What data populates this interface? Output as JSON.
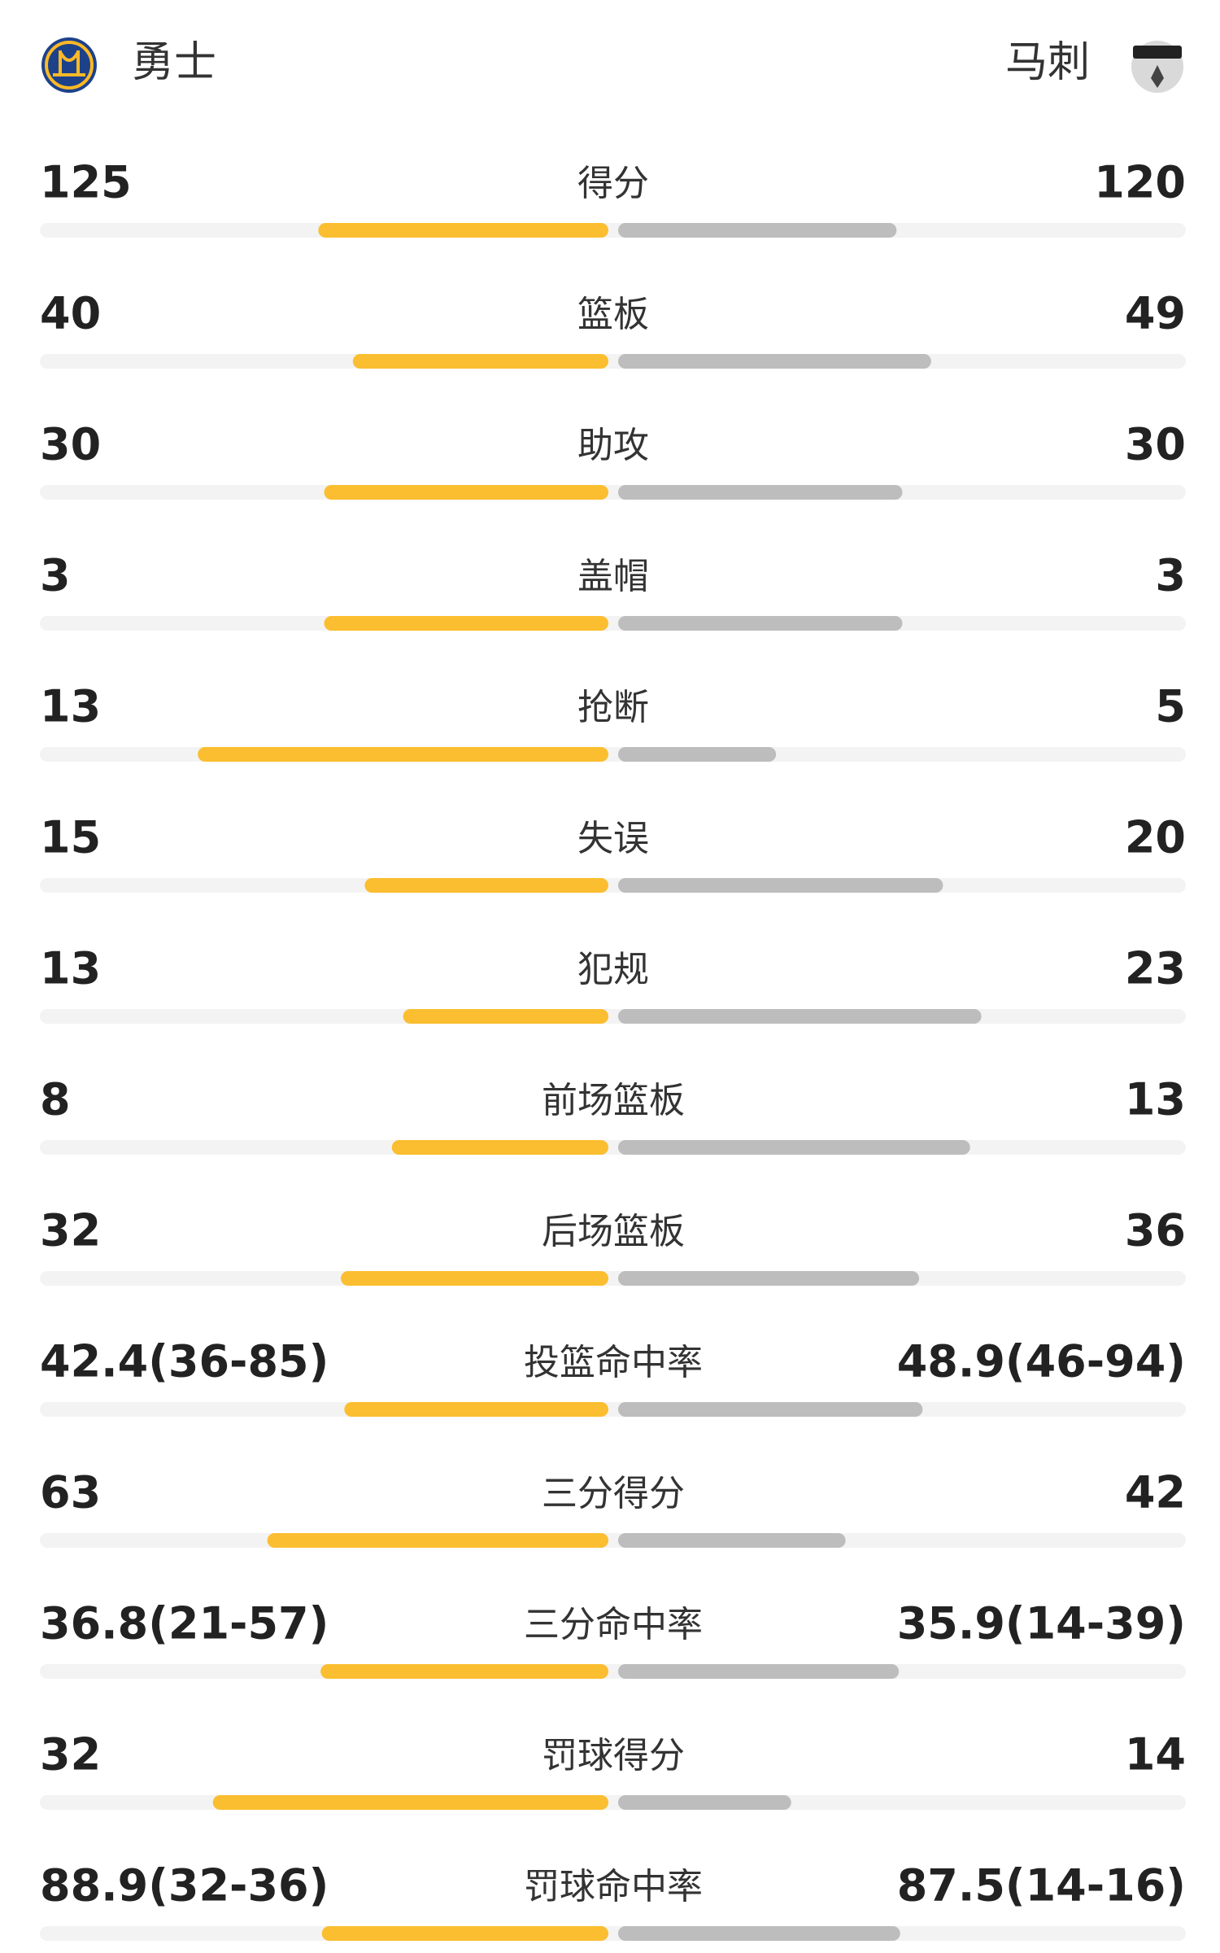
{
  "header": {
    "home": "勇士",
    "away": "马刺"
  },
  "rows": [
    {
      "label": "得分",
      "left": 125,
      "right": 120
    },
    {
      "label": "篮板",
      "left": 40,
      "right": 49
    },
    {
      "label": "助攻",
      "left": 30,
      "right": 30
    },
    {
      "label": "盖帽",
      "left": 3,
      "right": 3
    },
    {
      "label": "抢断",
      "left": 13,
      "right": 5
    },
    {
      "label": "失误",
      "left": 15,
      "right": 20
    },
    {
      "label": "犯规",
      "left": 13,
      "right": 23
    },
    {
      "label": "前场篮板",
      "left": 8,
      "right": 13
    },
    {
      "label": "后场篮板",
      "left": 32,
      "right": 36
    },
    {
      "label": "投篮命中率",
      "left": 42.4,
      "right": 48.9,
      "left_label": "42.4(36-85)",
      "right_label": "48.9(46-94)"
    },
    {
      "label": "三分得分",
      "left": 63,
      "right": 42
    },
    {
      "label": "三分命中率",
      "left": 36.8,
      "right": 35.9,
      "left_label": "36.8(21-57)",
      "right_label": "35.9(14-39)"
    },
    {
      "label": "罚球得分",
      "left": 32,
      "right": 14
    },
    {
      "label": "罚球命中率",
      "left": 88.9,
      "right": 87.5,
      "left_label": "88.9(32-36)",
      "right_label": "87.5(14-16)"
    }
  ]
}
